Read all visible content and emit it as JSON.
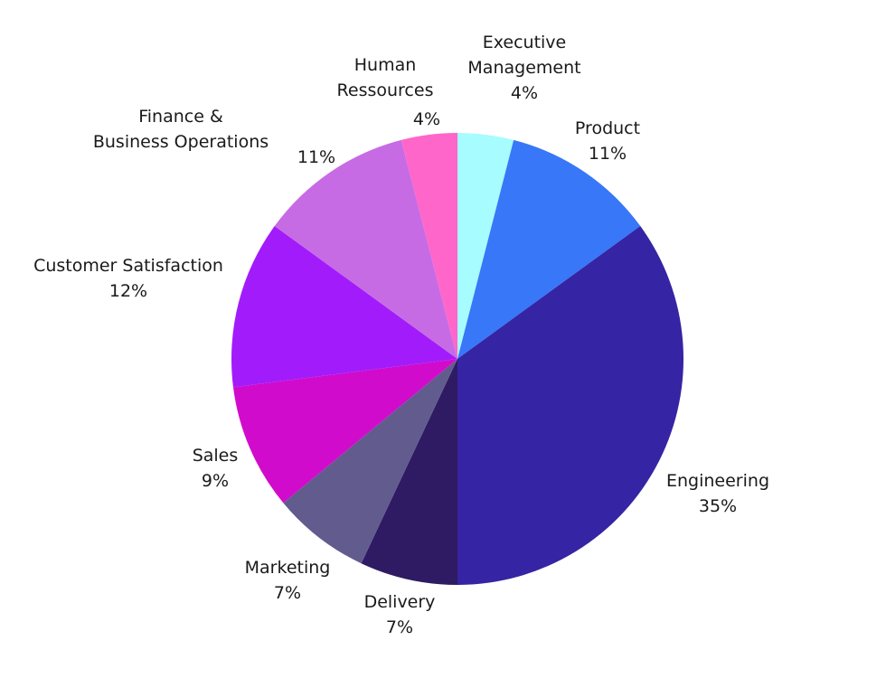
{
  "chart_data": {
    "type": "pie",
    "title": "",
    "start_angle_deg": 0,
    "direction": "clockwise",
    "slices": [
      {
        "label_lines": [
          "Executive",
          "Management"
        ],
        "percent_label": "4%",
        "value": 4,
        "color": "#A6FCFF"
      },
      {
        "label_lines": [
          "Product"
        ],
        "percent_label": "11%",
        "value": 11,
        "color": "#3877F7"
      },
      {
        "label_lines": [
          "Engineering"
        ],
        "percent_label": "35%",
        "value": 35,
        "color": "#3524A3"
      },
      {
        "label_lines": [
          "Delivery"
        ],
        "percent_label": "7%",
        "value": 7,
        "color": "#2F1B64"
      },
      {
        "label_lines": [
          "Marketing"
        ],
        "percent_label": "7%",
        "value": 7,
        "color": "#625B8E"
      },
      {
        "label_lines": [
          "Sales"
        ],
        "percent_label": "9%",
        "value": 9,
        "color": "#D10BCB"
      },
      {
        "label_lines": [
          "Customer Satisfaction"
        ],
        "percent_label": "12%",
        "value": 12,
        "color": "#A21CFB"
      },
      {
        "label_lines": [
          "Finance &",
          "Business Operations"
        ],
        "percent_label": "11%",
        "value": 11,
        "color": "#C76BE5"
      },
      {
        "label_lines": [
          "Human",
          "Ressources"
        ],
        "percent_label": "4%",
        "value": 4,
        "color": "#FF66C9"
      }
    ]
  }
}
